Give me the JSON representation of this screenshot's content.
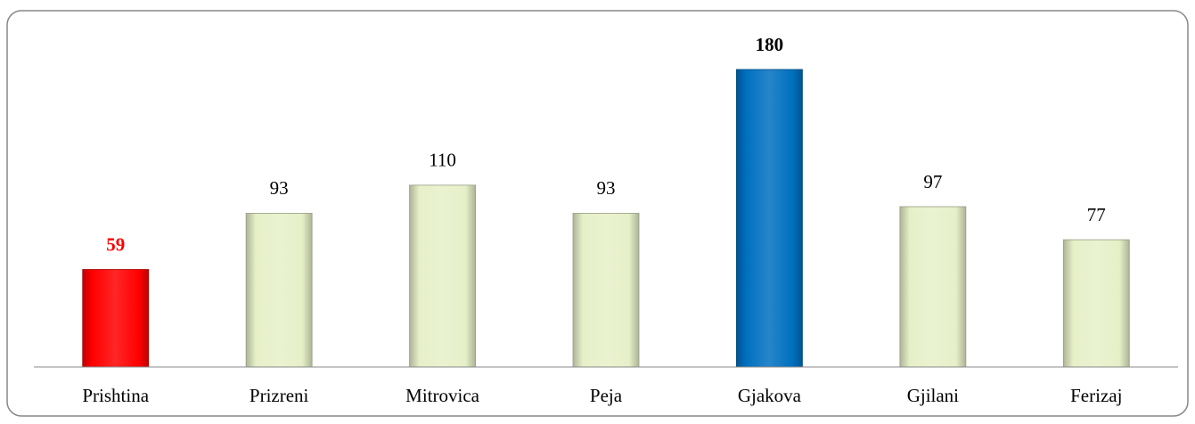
{
  "chart_data": {
    "type": "bar",
    "categories": [
      "Prishtina",
      "Prizreni",
      "Mitrovica",
      "Peja",
      "Gjakova",
      "Gjilani",
      "Ferizaj"
    ],
    "values": [
      59,
      93,
      110,
      93,
      180,
      97,
      77
    ],
    "colors": [
      "#ff0000",
      "#e6f0c8",
      "#e6f0c8",
      "#e6f0c8",
      "#0070c0",
      "#e6f0c8",
      "#e6f0c8"
    ],
    "label_colors": [
      "#ff0000",
      "#000000",
      "#000000",
      "#000000",
      "#000000",
      "#000000",
      "#000000"
    ],
    "bold_labels": [
      true,
      false,
      false,
      false,
      true,
      false,
      false
    ],
    "ylim": [
      0,
      180
    ]
  }
}
